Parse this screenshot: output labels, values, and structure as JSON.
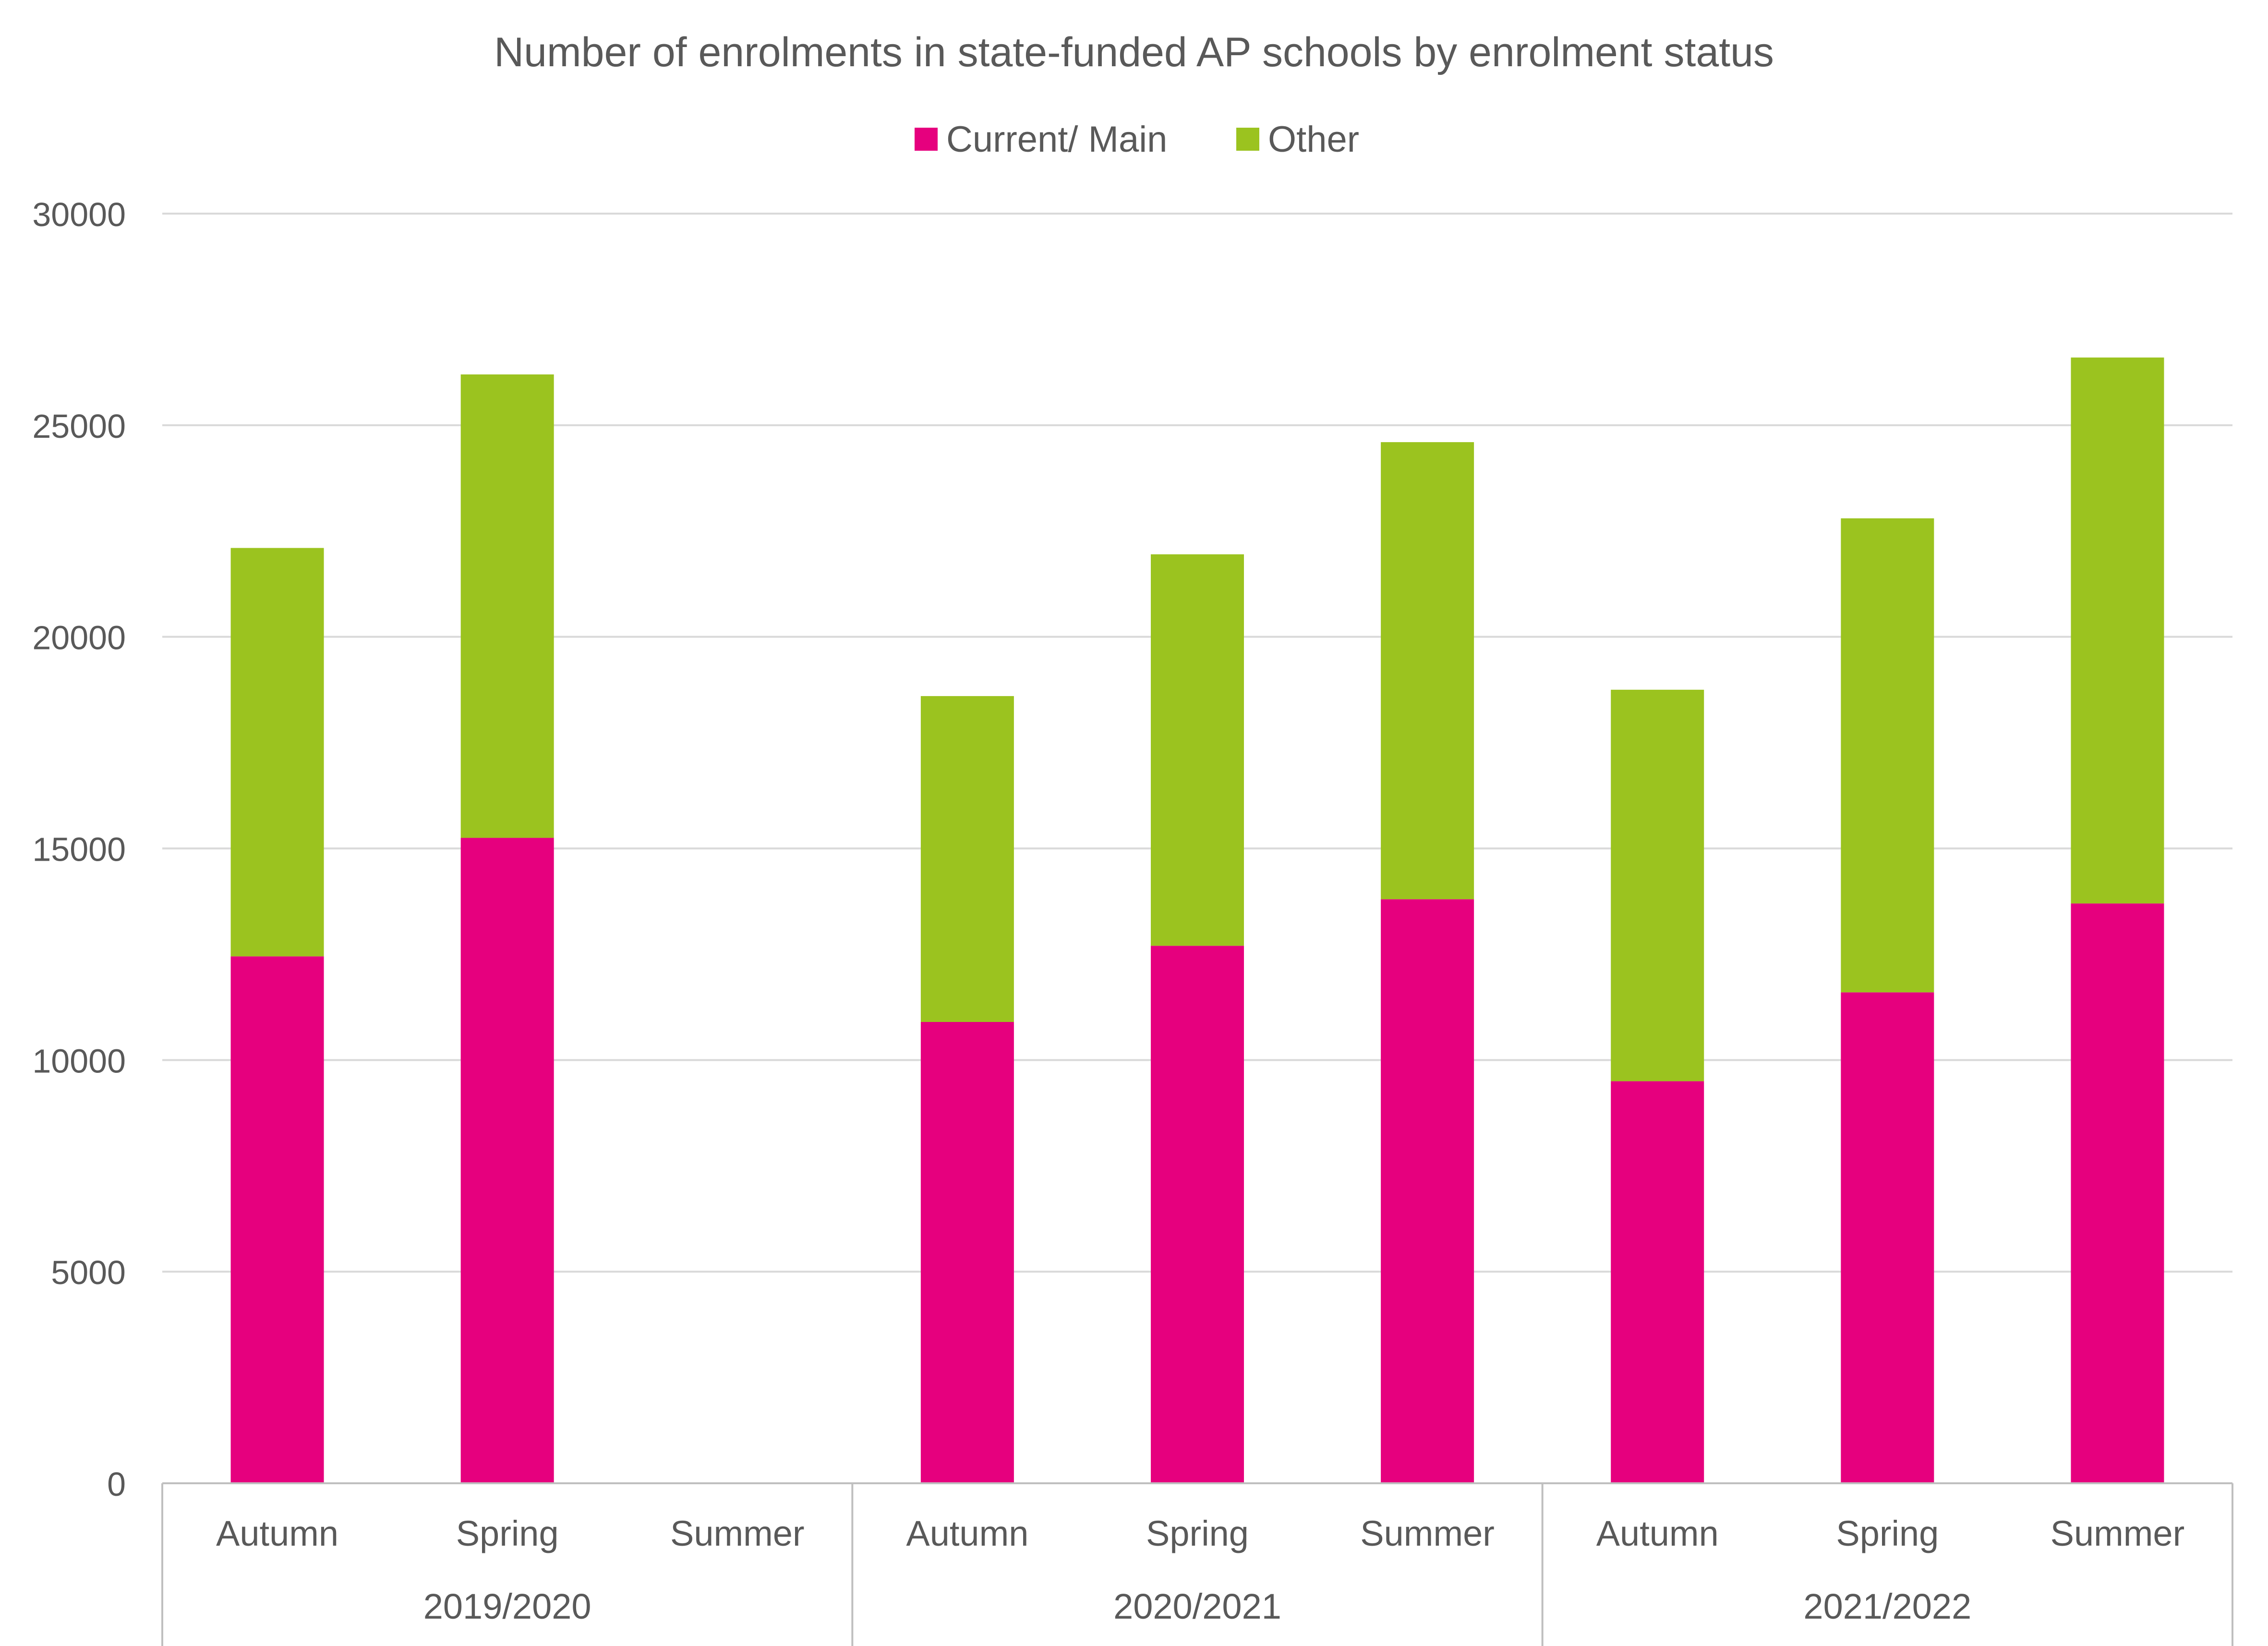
{
  "chart_data": {
    "type": "bar",
    "stacked": true,
    "title": "Number of enrolments in state-funded AP schools by enrolment status",
    "xlabel": "",
    "ylabel": "",
    "ylim": [
      0,
      30000
    ],
    "yticks": [
      0,
      5000,
      10000,
      15000,
      20000,
      25000,
      30000
    ],
    "grid": true,
    "legend": "top-center",
    "categories": [
      "Autumn",
      "Spring",
      "Summer",
      "Autumn",
      "Spring",
      "Summer",
      "Autumn",
      "Spring",
      "Summer"
    ],
    "groups": [
      {
        "label": "2019/2020",
        "categories": [
          "Autumn",
          "Spring",
          "Summer"
        ]
      },
      {
        "label": "2020/2021",
        "categories": [
          "Autumn",
          "Spring",
          "Summer"
        ]
      },
      {
        "label": "2021/2022",
        "categories": [
          "Autumn",
          "Spring",
          "Summer"
        ]
      }
    ],
    "series": [
      {
        "name": "Current/ Main",
        "color": "#E6007E",
        "values": [
          12450,
          15250,
          0,
          10900,
          12700,
          13800,
          9500,
          11600,
          13700
        ]
      },
      {
        "name": "Other",
        "color": "#9BC31F",
        "values": [
          9650,
          10950,
          0,
          7700,
          9250,
          10800,
          9250,
          11200,
          12900
        ]
      }
    ]
  },
  "colors": {
    "gridline": "#D9D9D9",
    "axis": "#BFBFBF",
    "text": "#595959",
    "background": "#FFFFFF"
  }
}
